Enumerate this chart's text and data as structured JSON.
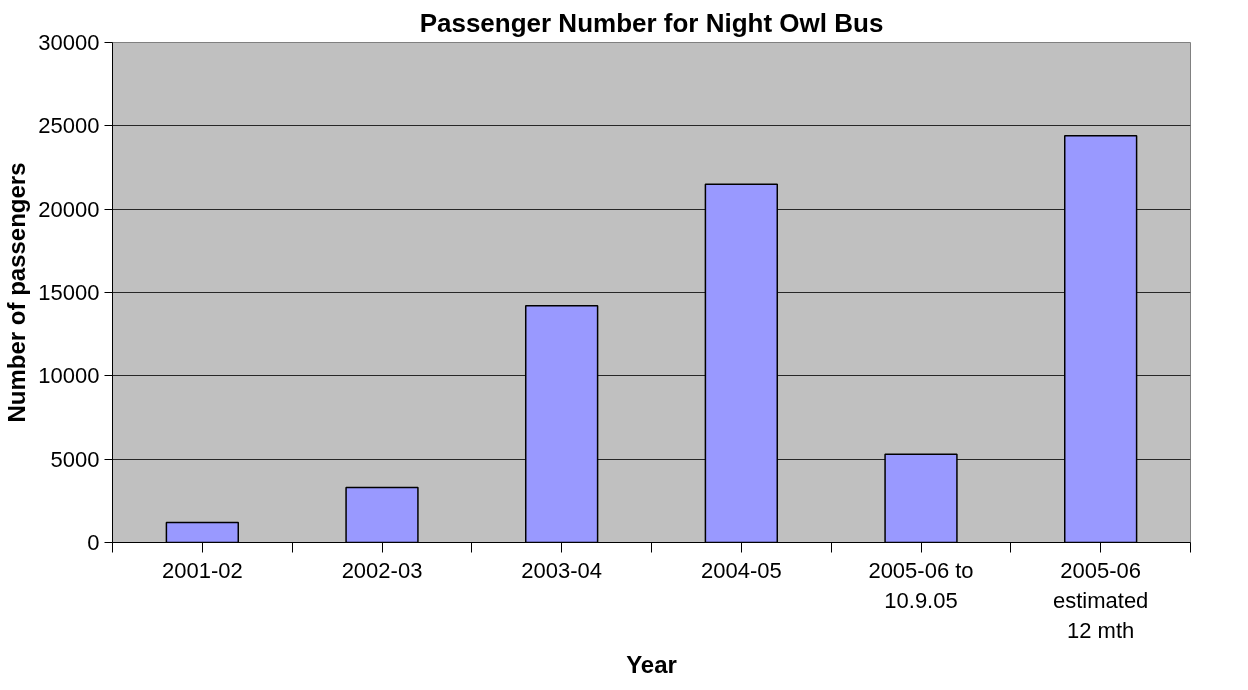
{
  "chart_data": {
    "type": "bar",
    "title": "Passenger Number for Night Owl Bus",
    "xlabel": "Year",
    "ylabel": "Number of passengers",
    "categories": [
      "2001-02",
      "2002-03",
      "2003-04",
      "2004-05",
      "2005-06 to 10.9.05",
      "2005-06 estimated 12 mth"
    ],
    "values": [
      1200,
      3300,
      14200,
      21500,
      5300,
      24400
    ],
    "color": "#9999ff",
    "ylim": [
      0,
      30000
    ],
    "yticks": [
      0,
      5000,
      10000,
      15000,
      20000,
      25000,
      30000
    ],
    "grid": "y"
  }
}
